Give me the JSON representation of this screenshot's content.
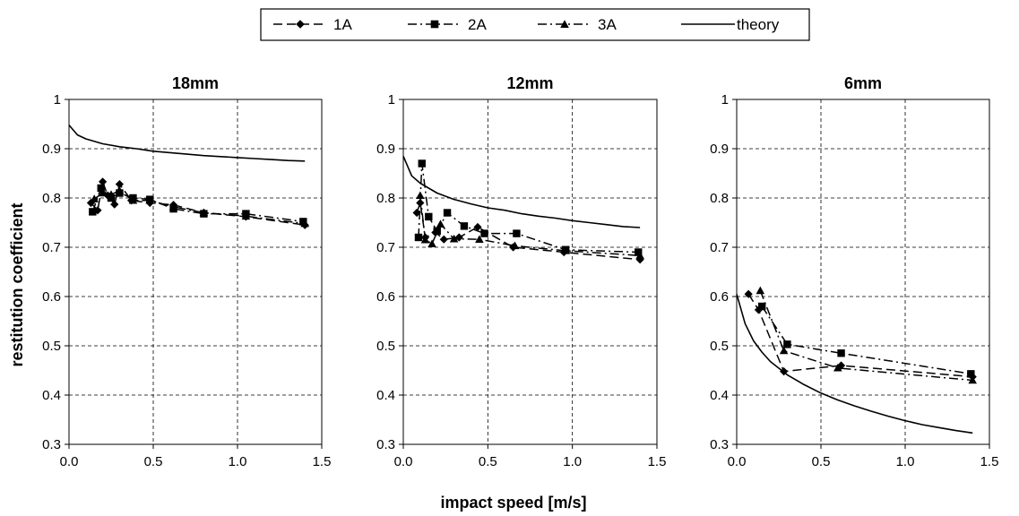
{
  "figure": {
    "xlabel": "impact speed [m/s]",
    "ylabel": "restitution coefficient"
  },
  "legend": {
    "position": "top-center",
    "entries": [
      {
        "label": "1A",
        "marker": "diamond",
        "dash": "dash"
      },
      {
        "label": "2A",
        "marker": "square",
        "dash": "dash-dot"
      },
      {
        "label": "3A",
        "marker": "triangle",
        "dash": "dash-dot"
      },
      {
        "label": "theory",
        "marker": "none",
        "dash": "solid"
      }
    ]
  },
  "chart_data": [
    {
      "type": "line",
      "title": "18mm",
      "xlabel": "impact speed [m/s]",
      "ylabel": "restitution coefficient",
      "xlim": [
        0,
        1.5
      ],
      "ylim": [
        0.3,
        1
      ],
      "xticks": [
        "0.0",
        "0.5",
        "1.0",
        "1.5"
      ],
      "yticks": [
        "0.3",
        "0.4",
        "0.5",
        "0.6",
        "0.7",
        "0.8",
        "0.9",
        "1"
      ],
      "grid": true,
      "series": [
        {
          "name": "1A",
          "x": [
            0.13,
            0.17,
            0.2,
            0.23,
            0.27,
            0.3,
            0.37,
            0.48,
            0.62,
            0.8,
            1.05,
            1.4
          ],
          "y": [
            0.79,
            0.775,
            0.833,
            0.805,
            0.787,
            0.828,
            0.795,
            0.79,
            0.786,
            0.77,
            0.762,
            0.745
          ]
        },
        {
          "name": "2A",
          "x": [
            0.14,
            0.19,
            0.25,
            0.3,
            0.38,
            0.48,
            0.62,
            0.8,
            1.05,
            1.39
          ],
          "y": [
            0.772,
            0.82,
            0.8,
            0.81,
            0.8,
            0.797,
            0.778,
            0.768,
            0.768,
            0.752
          ]
        },
        {
          "name": "3A",
          "x": [
            0.15,
            0.2,
            0.25,
            0.3,
            0.38,
            0.48,
            0.62,
            0.8,
            1.05,
            1.4
          ],
          "y": [
            0.798,
            0.81,
            0.807,
            0.815,
            0.795,
            0.795,
            0.782,
            0.77,
            0.763,
            0.748
          ]
        },
        {
          "name": "theory",
          "x": [
            0.0,
            0.05,
            0.1,
            0.2,
            0.3,
            0.4,
            0.5,
            0.6,
            0.7,
            0.8,
            0.9,
            1.0,
            1.1,
            1.2,
            1.3,
            1.4
          ],
          "y": [
            0.948,
            0.928,
            0.92,
            0.91,
            0.904,
            0.9,
            0.895,
            0.892,
            0.889,
            0.886,
            0.884,
            0.882,
            0.88,
            0.878,
            0.876,
            0.875
          ]
        }
      ]
    },
    {
      "type": "line",
      "title": "12mm",
      "xlabel": "impact speed [m/s]",
      "ylabel": "restitution coefficient",
      "xlim": [
        0,
        1.5
      ],
      "ylim": [
        0.3,
        1
      ],
      "xticks": [
        "0.0",
        "0.5",
        "1.0",
        "1.5"
      ],
      "yticks": [
        "0.3",
        "0.4",
        "0.5",
        "0.6",
        "0.7",
        "0.8",
        "0.9",
        "1"
      ],
      "grid": true,
      "series": [
        {
          "name": "1A",
          "x": [
            0.08,
            0.1,
            0.13,
            0.19,
            0.24,
            0.33,
            0.44,
            0.65,
            0.95,
            1.4
          ],
          "y": [
            0.77,
            0.79,
            0.72,
            0.73,
            0.716,
            0.72,
            0.741,
            0.7,
            0.69,
            0.675
          ]
        },
        {
          "name": "2A",
          "x": [
            0.09,
            0.11,
            0.15,
            0.2,
            0.26,
            0.36,
            0.48,
            0.67,
            0.96,
            1.39
          ],
          "y": [
            0.72,
            0.87,
            0.762,
            0.733,
            0.77,
            0.743,
            0.728,
            0.728,
            0.695,
            0.69
          ]
        },
        {
          "name": "3A",
          "x": [
            0.1,
            0.13,
            0.17,
            0.22,
            0.3,
            0.45,
            0.66,
            0.96,
            1.4
          ],
          "y": [
            0.805,
            0.715,
            0.707,
            0.747,
            0.717,
            0.716,
            0.703,
            0.693,
            0.683
          ]
        },
        {
          "name": "theory",
          "x": [
            0.0,
            0.05,
            0.1,
            0.15,
            0.2,
            0.3,
            0.4,
            0.5,
            0.6,
            0.7,
            0.8,
            0.9,
            1.0,
            1.1,
            1.2,
            1.3,
            1.4
          ],
          "y": [
            0.885,
            0.845,
            0.83,
            0.82,
            0.81,
            0.797,
            0.788,
            0.78,
            0.775,
            0.768,
            0.763,
            0.759,
            0.754,
            0.75,
            0.746,
            0.742,
            0.74
          ]
        }
      ]
    },
    {
      "type": "line",
      "title": "6mm",
      "xlabel": "impact speed [m/s]",
      "ylabel": "restitution coefficient",
      "xlim": [
        0,
        1.5
      ],
      "ylim": [
        0.3,
        1
      ],
      "xticks": [
        "0.0",
        "0.5",
        "1.0",
        "1.5"
      ],
      "yticks": [
        "0.3",
        "0.4",
        "0.5",
        "0.6",
        "0.7",
        "0.8",
        "0.9",
        "1"
      ],
      "grid": true,
      "series": [
        {
          "name": "1A",
          "x": [
            0.07,
            0.13,
            0.28,
            0.62,
            1.4
          ],
          "y": [
            0.605,
            0.573,
            0.448,
            0.46,
            0.437
          ]
        },
        {
          "name": "2A",
          "x": [
            0.15,
            0.3,
            0.62,
            1.39
          ],
          "y": [
            0.58,
            0.503,
            0.485,
            0.443
          ]
        },
        {
          "name": "3A",
          "x": [
            0.14,
            0.28,
            0.6,
            1.4
          ],
          "y": [
            0.612,
            0.49,
            0.455,
            0.43
          ]
        },
        {
          "name": "theory",
          "x": [
            0.0,
            0.05,
            0.1,
            0.15,
            0.2,
            0.3,
            0.4,
            0.5,
            0.6,
            0.7,
            0.8,
            0.9,
            1.0,
            1.1,
            1.2,
            1.3,
            1.4
          ],
          "y": [
            0.605,
            0.545,
            0.51,
            0.487,
            0.468,
            0.441,
            0.421,
            0.404,
            0.39,
            0.378,
            0.367,
            0.357,
            0.348,
            0.34,
            0.334,
            0.328,
            0.323
          ]
        }
      ]
    }
  ]
}
